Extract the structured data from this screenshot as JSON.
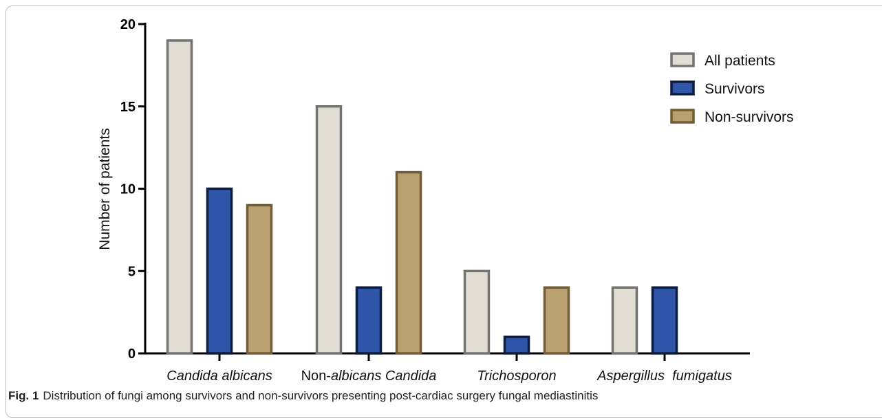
{
  "chart_data": {
    "type": "bar",
    "ylabel": "Number of patients",
    "xlabel": "",
    "ylim": [
      0,
      20
    ],
    "yticks": [
      0,
      5,
      10,
      15,
      20
    ],
    "grid": false,
    "legend_position": "top-right",
    "categories": [
      {
        "parts": [
          {
            "text": "Candida albicans",
            "italic": true
          }
        ]
      },
      {
        "parts": [
          {
            "text": "Non-",
            "italic": false
          },
          {
            "text": "albicans",
            "italic": true
          },
          {
            "text": " Candida",
            "italic": true
          }
        ]
      },
      {
        "parts": [
          {
            "text": "Trichosporon",
            "italic": true
          }
        ]
      },
      {
        "parts": [
          {
            "text": "Aspergillus  fumigatus",
            "italic": true
          }
        ]
      }
    ],
    "series": [
      {
        "name": "All patients",
        "values": [
          19,
          15,
          5,
          4
        ],
        "fill": "#e2ddd2",
        "stroke": "#737373"
      },
      {
        "name": "Survivors",
        "values": [
          10,
          4,
          1,
          4
        ],
        "fill": "#2e55a8",
        "stroke": "#0e1d3d"
      },
      {
        "name": "Non-survivors",
        "values": [
          9,
          11,
          4,
          null
        ],
        "fill": "#b8a071",
        "stroke": "#735c33"
      }
    ]
  },
  "caption": {
    "label": "Fig. 1",
    "text": "Distribution of fungi among survivors and non-survivors presenting post-cardiac surgery fungal mediastinitis"
  }
}
